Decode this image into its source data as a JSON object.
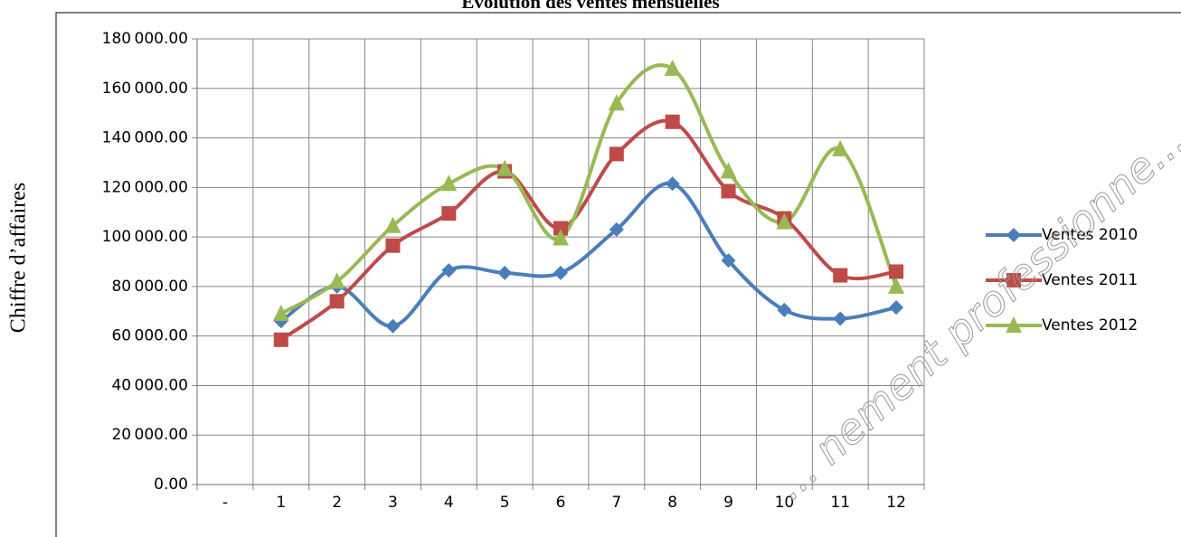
{
  "chart_data": {
    "type": "line",
    "title": "Evolution des ventes mensuelles",
    "ylabel": "Chiffre d’affaires",
    "xlabel": "",
    "x_tick_labels": [
      "-",
      "1",
      "2",
      "3",
      "4",
      "5",
      "6",
      "7",
      "8",
      "9",
      "10",
      "11",
      "12"
    ],
    "x": [
      1,
      2,
      3,
      4,
      5,
      6,
      7,
      8,
      9,
      10,
      11,
      12
    ],
    "y_tick_labels": [
      "0.00",
      "20 000.00",
      "40 000.00",
      "60 000.00",
      "80 000.00",
      "100 000.00",
      "120 000.00",
      "140 000.00",
      "160 000.00",
      "180 000.00"
    ],
    "ylim": [
      0,
      180000
    ],
    "grid": true,
    "smooth": true,
    "legend_position": "right",
    "series": [
      {
        "name": "Ventes 2010",
        "color": "#4a7ebb",
        "marker": "diamond",
        "values": [
          66000,
          80000,
          64000,
          86500,
          85500,
          85500,
          103000,
          121500,
          90500,
          70500,
          67000,
          71500
        ]
      },
      {
        "name": "Ventes 2011",
        "color": "#be4b48",
        "marker": "square",
        "values": [
          58500,
          74000,
          96500,
          109500,
          126500,
          103500,
          133500,
          146500,
          118500,
          107500,
          84500,
          86000
        ]
      },
      {
        "name": "Ventes 2012",
        "color": "#98b954",
        "marker": "triangle",
        "values": [
          69000,
          82000,
          104500,
          121500,
          127500,
          99500,
          154000,
          168000,
          126500,
          106000,
          135500,
          80000
        ]
      }
    ]
  },
  "watermark": "... nement professionne..."
}
